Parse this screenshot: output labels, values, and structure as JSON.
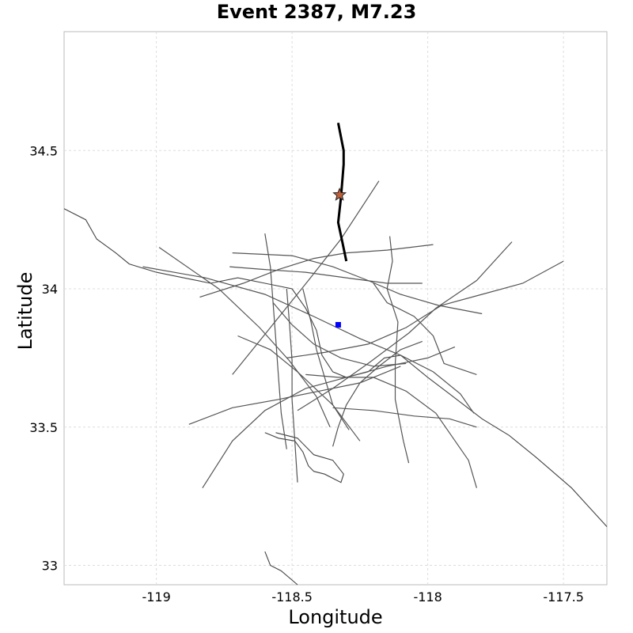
{
  "title": "Event 2387, M7.23",
  "chart_data": {
    "type": "map",
    "title": "Event 2387, M7.23",
    "xlabel": "Longitude",
    "ylabel": "Latitude",
    "xlim": [
      -119.34,
      -117.34
    ],
    "ylim": [
      32.93,
      34.93
    ],
    "x_ticks": [
      -119,
      -118.5,
      -118,
      -117.5
    ],
    "x_tick_labels": [
      "-119",
      "-118.5",
      "-118",
      "-117.5"
    ],
    "y_ticks": [
      33,
      33.5,
      34,
      34.5
    ],
    "y_tick_labels": [
      "33",
      "33.5",
      "34",
      "34.5"
    ],
    "grid": true,
    "colors": {
      "faults": "#555555",
      "coastline": "#444444",
      "rupture": "#000000",
      "hypocenter": "#c0603a",
      "site": "#0000ff",
      "grid": "#dddddd"
    },
    "rupture_trace": [
      [
        -118.33,
        34.6
      ],
      [
        -118.31,
        34.5
      ],
      [
        -118.31,
        34.45
      ],
      [
        -118.32,
        34.33
      ],
      [
        -118.33,
        34.24
      ],
      [
        -118.315,
        34.17
      ],
      [
        -118.3,
        34.1
      ]
    ],
    "hypocenter": [
      -118.325,
      34.34
    ],
    "site": [
      -118.33,
      33.87
    ],
    "faults": [
      [
        [
          -118.99,
          34.15
        ],
        [
          -118.77,
          34.0
        ],
        [
          -118.62,
          33.86
        ],
        [
          -118.51,
          33.74
        ],
        [
          -118.41,
          33.61
        ],
        [
          -118.36,
          33.5
        ]
      ],
      [
        [
          -119.05,
          34.08
        ],
        [
          -118.82,
          34.04
        ],
        [
          -118.6,
          33.98
        ],
        [
          -118.42,
          33.9
        ],
        [
          -118.25,
          33.82
        ],
        [
          -118.1,
          33.76
        ],
        [
          -117.98,
          33.7
        ],
        [
          -117.88,
          33.62
        ],
        [
          -117.83,
          33.55
        ]
      ],
      [
        [
          -118.6,
          34.2
        ],
        [
          -118.58,
          34.08
        ],
        [
          -118.57,
          33.95
        ],
        [
          -118.56,
          33.82
        ],
        [
          -118.55,
          33.68
        ],
        [
          -118.54,
          33.55
        ],
        [
          -118.52,
          33.42
        ]
      ],
      [
        [
          -118.48,
          33.3
        ],
        [
          -118.49,
          33.45
        ],
        [
          -118.5,
          33.6
        ],
        [
          -118.5,
          33.74
        ],
        [
          -118.51,
          33.88
        ],
        [
          -118.52,
          34.0
        ]
      ],
      [
        [
          -118.73,
          34.08
        ],
        [
          -118.6,
          34.07
        ],
        [
          -118.45,
          34.06
        ],
        [
          -118.3,
          34.04
        ],
        [
          -118.15,
          34.02
        ],
        [
          -118.02,
          34.02
        ]
      ],
      [
        [
          -118.72,
          33.69
        ],
        [
          -118.58,
          33.86
        ],
        [
          -118.44,
          34.03
        ],
        [
          -118.32,
          34.18
        ],
        [
          -118.22,
          34.33
        ],
        [
          -118.18,
          34.39
        ]
      ],
      [
        [
          -118.83,
          33.28
        ],
        [
          -118.72,
          33.45
        ],
        [
          -118.6,
          33.56
        ],
        [
          -118.45,
          33.64
        ],
        [
          -118.3,
          33.68
        ],
        [
          -118.15,
          33.72
        ],
        [
          -118.0,
          33.75
        ],
        [
          -117.9,
          33.79
        ]
      ],
      [
        [
          -118.72,
          34.13
        ],
        [
          -118.5,
          34.12
        ],
        [
          -118.35,
          34.08
        ],
        [
          -118.22,
          34.03
        ],
        [
          -118.1,
          33.98
        ],
        [
          -117.96,
          33.94
        ],
        [
          -117.8,
          33.91
        ]
      ],
      [
        [
          -118.88,
          33.51
        ],
        [
          -118.72,
          33.57
        ],
        [
          -118.55,
          33.6
        ],
        [
          -118.4,
          33.63
        ],
        [
          -118.25,
          33.66
        ],
        [
          -118.1,
          33.72
        ]
      ],
      [
        [
          -118.48,
          33.56
        ],
        [
          -118.35,
          33.64
        ],
        [
          -118.22,
          33.73
        ],
        [
          -118.07,
          33.84
        ],
        [
          -117.97,
          33.93
        ],
        [
          -117.82,
          34.03
        ],
        [
          -117.69,
          34.17
        ]
      ],
      [
        [
          -118.52,
          33.75
        ],
        [
          -118.38,
          33.77
        ],
        [
          -118.22,
          33.8
        ],
        [
          -118.08,
          33.86
        ],
        [
          -117.95,
          33.94
        ],
        [
          -117.8,
          33.98
        ],
        [
          -117.65,
          34.02
        ],
        [
          -117.5,
          34.1
        ]
      ],
      [
        [
          -118.84,
          33.97
        ],
        [
          -118.68,
          34.02
        ],
        [
          -118.55,
          34.07
        ],
        [
          -118.42,
          34.11
        ],
        [
          -118.3,
          34.13
        ],
        [
          -118.15,
          34.14
        ],
        [
          -117.98,
          34.16
        ]
      ],
      [
        [
          -118.25,
          33.45
        ],
        [
          -118.35,
          33.58
        ],
        [
          -118.48,
          33.7
        ],
        [
          -118.58,
          33.78
        ],
        [
          -118.7,
          33.83
        ]
      ],
      [
        [
          -118.14,
          34.19
        ],
        [
          -118.13,
          34.1
        ],
        [
          -118.15,
          34.0
        ],
        [
          -118.11,
          33.88
        ],
        [
          -118.12,
          33.73
        ],
        [
          -118.12,
          33.6
        ],
        [
          -118.09,
          33.45
        ],
        [
          -118.07,
          33.37
        ]
      ],
      [
        [
          -118.57,
          33.95
        ],
        [
          -118.5,
          33.87
        ],
        [
          -118.42,
          33.8
        ],
        [
          -118.32,
          33.75
        ],
        [
          -118.2,
          33.72
        ],
        [
          -118.08,
          33.73
        ]
      ],
      [
        [
          -118.2,
          34.02
        ],
        [
          -118.15,
          33.95
        ],
        [
          -118.05,
          33.9
        ],
        [
          -117.98,
          33.83
        ],
        [
          -117.94,
          33.73
        ],
        [
          -117.82,
          33.69
        ]
      ],
      [
        [
          -118.35,
          33.43
        ],
        [
          -118.33,
          33.5
        ],
        [
          -118.3,
          33.58
        ],
        [
          -118.25,
          33.66
        ],
        [
          -118.18,
          33.72
        ],
        [
          -118.1,
          33.78
        ],
        [
          -118.02,
          33.81
        ]
      ],
      [
        [
          -118.29,
          33.49
        ],
        [
          -118.35,
          33.58
        ],
        [
          -118.38,
          33.68
        ],
        [
          -118.41,
          33.78
        ],
        [
          -118.43,
          33.88
        ],
        [
          -118.46,
          34.0
        ]
      ],
      [
        [
          -118.35,
          33.57
        ],
        [
          -118.2,
          33.56
        ],
        [
          -118.05,
          33.54
        ],
        [
          -117.92,
          33.53
        ],
        [
          -117.82,
          33.5
        ]
      ],
      [
        [
          -118.45,
          33.69
        ],
        [
          -118.33,
          33.68
        ],
        [
          -118.2,
          33.68
        ],
        [
          -118.08,
          33.63
        ],
        [
          -117.97,
          33.55
        ],
        [
          -117.85,
          33.38
        ],
        [
          -117.82,
          33.28
        ]
      ]
    ],
    "coastline": [
      [
        [
          -119.34,
          34.29
        ],
        [
          -119.26,
          34.25
        ],
        [
          -119.22,
          34.18
        ],
        [
          -119.15,
          34.13
        ],
        [
          -119.1,
          34.09
        ],
        [
          -119.0,
          34.06
        ],
        [
          -118.9,
          34.04
        ],
        [
          -118.8,
          34.02
        ],
        [
          -118.7,
          34.04
        ],
        [
          -118.6,
          34.02
        ],
        [
          -118.5,
          34.0
        ],
        [
          -118.45,
          33.93
        ],
        [
          -118.41,
          33.85
        ],
        [
          -118.39,
          33.76
        ],
        [
          -118.35,
          33.7
        ],
        [
          -118.3,
          33.68
        ],
        [
          -118.22,
          33.7
        ],
        [
          -118.16,
          33.75
        ],
        [
          -118.1,
          33.76
        ],
        [
          -118.0,
          33.68
        ],
        [
          -117.92,
          33.62
        ],
        [
          -117.8,
          33.53
        ],
        [
          -117.7,
          33.47
        ],
        [
          -117.6,
          33.39
        ],
        [
          -117.47,
          33.28
        ],
        [
          -117.34,
          33.14
        ]
      ],
      [
        [
          -118.6,
          33.48
        ],
        [
          -118.55,
          33.46
        ],
        [
          -118.49,
          33.45
        ],
        [
          -118.46,
          33.41
        ],
        [
          -118.44,
          33.36
        ],
        [
          -118.42,
          33.34
        ],
        [
          -118.38,
          33.33
        ],
        [
          -118.32,
          33.3
        ],
        [
          -118.31,
          33.33
        ],
        [
          -118.35,
          33.38
        ],
        [
          -118.42,
          33.4
        ],
        [
          -118.48,
          33.46
        ],
        [
          -118.56,
          33.48
        ]
      ],
      [
        [
          -118.6,
          33.05
        ],
        [
          -118.58,
          33.0
        ],
        [
          -118.54,
          32.98
        ],
        [
          -118.48,
          32.93
        ]
      ]
    ]
  }
}
